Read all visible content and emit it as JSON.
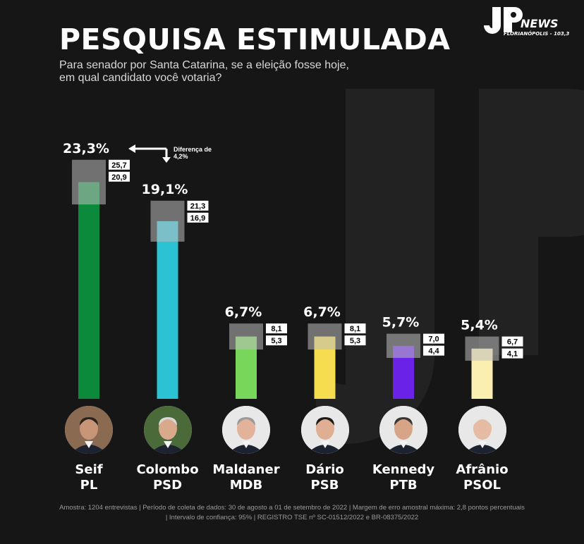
{
  "header": {
    "title": "PESQUISA ESTIMULADA",
    "subtitle_line1": "Para senador por Santa Catarina, se a eleição fosse hoje,",
    "subtitle_line2": "em qual candidato você votaria?"
  },
  "logo": {
    "news": "NEWS",
    "city": "FLORIANÓPOLIS - 103,3"
  },
  "annotation": {
    "line1": "Diferença de",
    "line2": "4,2%"
  },
  "chart_data": {
    "type": "bar",
    "title": "PESQUISA ESTIMULADA",
    "categories": [
      "Seif PL",
      "Colombo PSD",
      "Maldaner MDB",
      "Dário PSB",
      "Kennedy PTB",
      "Afrânio PSOL"
    ],
    "values": [
      23.3,
      19.1,
      6.7,
      6.7,
      5.7,
      5.4
    ],
    "value_labels": [
      "23,3%",
      "19,1%",
      "6,7%",
      "6,7%",
      "5,7%",
      "5,4%"
    ],
    "upper": [
      "25,7",
      "21,3",
      "8,1",
      "8,1",
      "7,0",
      "6,7"
    ],
    "lower": [
      "20,9",
      "16,9",
      "5,3",
      "5,3",
      "4,4",
      "4,1"
    ],
    "upper_values": [
      25.7,
      21.3,
      8.1,
      8.1,
      7.0,
      6.7
    ],
    "lower_values": [
      20.9,
      16.9,
      5.3,
      5.3,
      4.4,
      4.1
    ],
    "colors": [
      "#0b8a3b",
      "#2bc2d4",
      "#78d65a",
      "#f6dc4f",
      "#6a22e6",
      "#fbeeb1"
    ],
    "ylim": [
      0,
      30
    ]
  },
  "candidates": [
    {
      "name": "Seif",
      "party": "PL"
    },
    {
      "name": "Colombo",
      "party": "PSD"
    },
    {
      "name": "Maldaner",
      "party": "MDB"
    },
    {
      "name": "Dário",
      "party": "PSB"
    },
    {
      "name": "Kennedy",
      "party": "PTB"
    },
    {
      "name": "Afrânio",
      "party": "PSOL"
    }
  ],
  "footer": {
    "line1": "Amostra: 1204 entrevistas | Período de coleta de dados: 30 de agosto a 01 de setembro de 2022 | Margem de erro amostral máxima: 2,8 pontos percentuais",
    "line2": "| Intervalo de confiança: 95% | REGISTRO TSE nº SC-01512/2022 e BR-08375/2022"
  }
}
